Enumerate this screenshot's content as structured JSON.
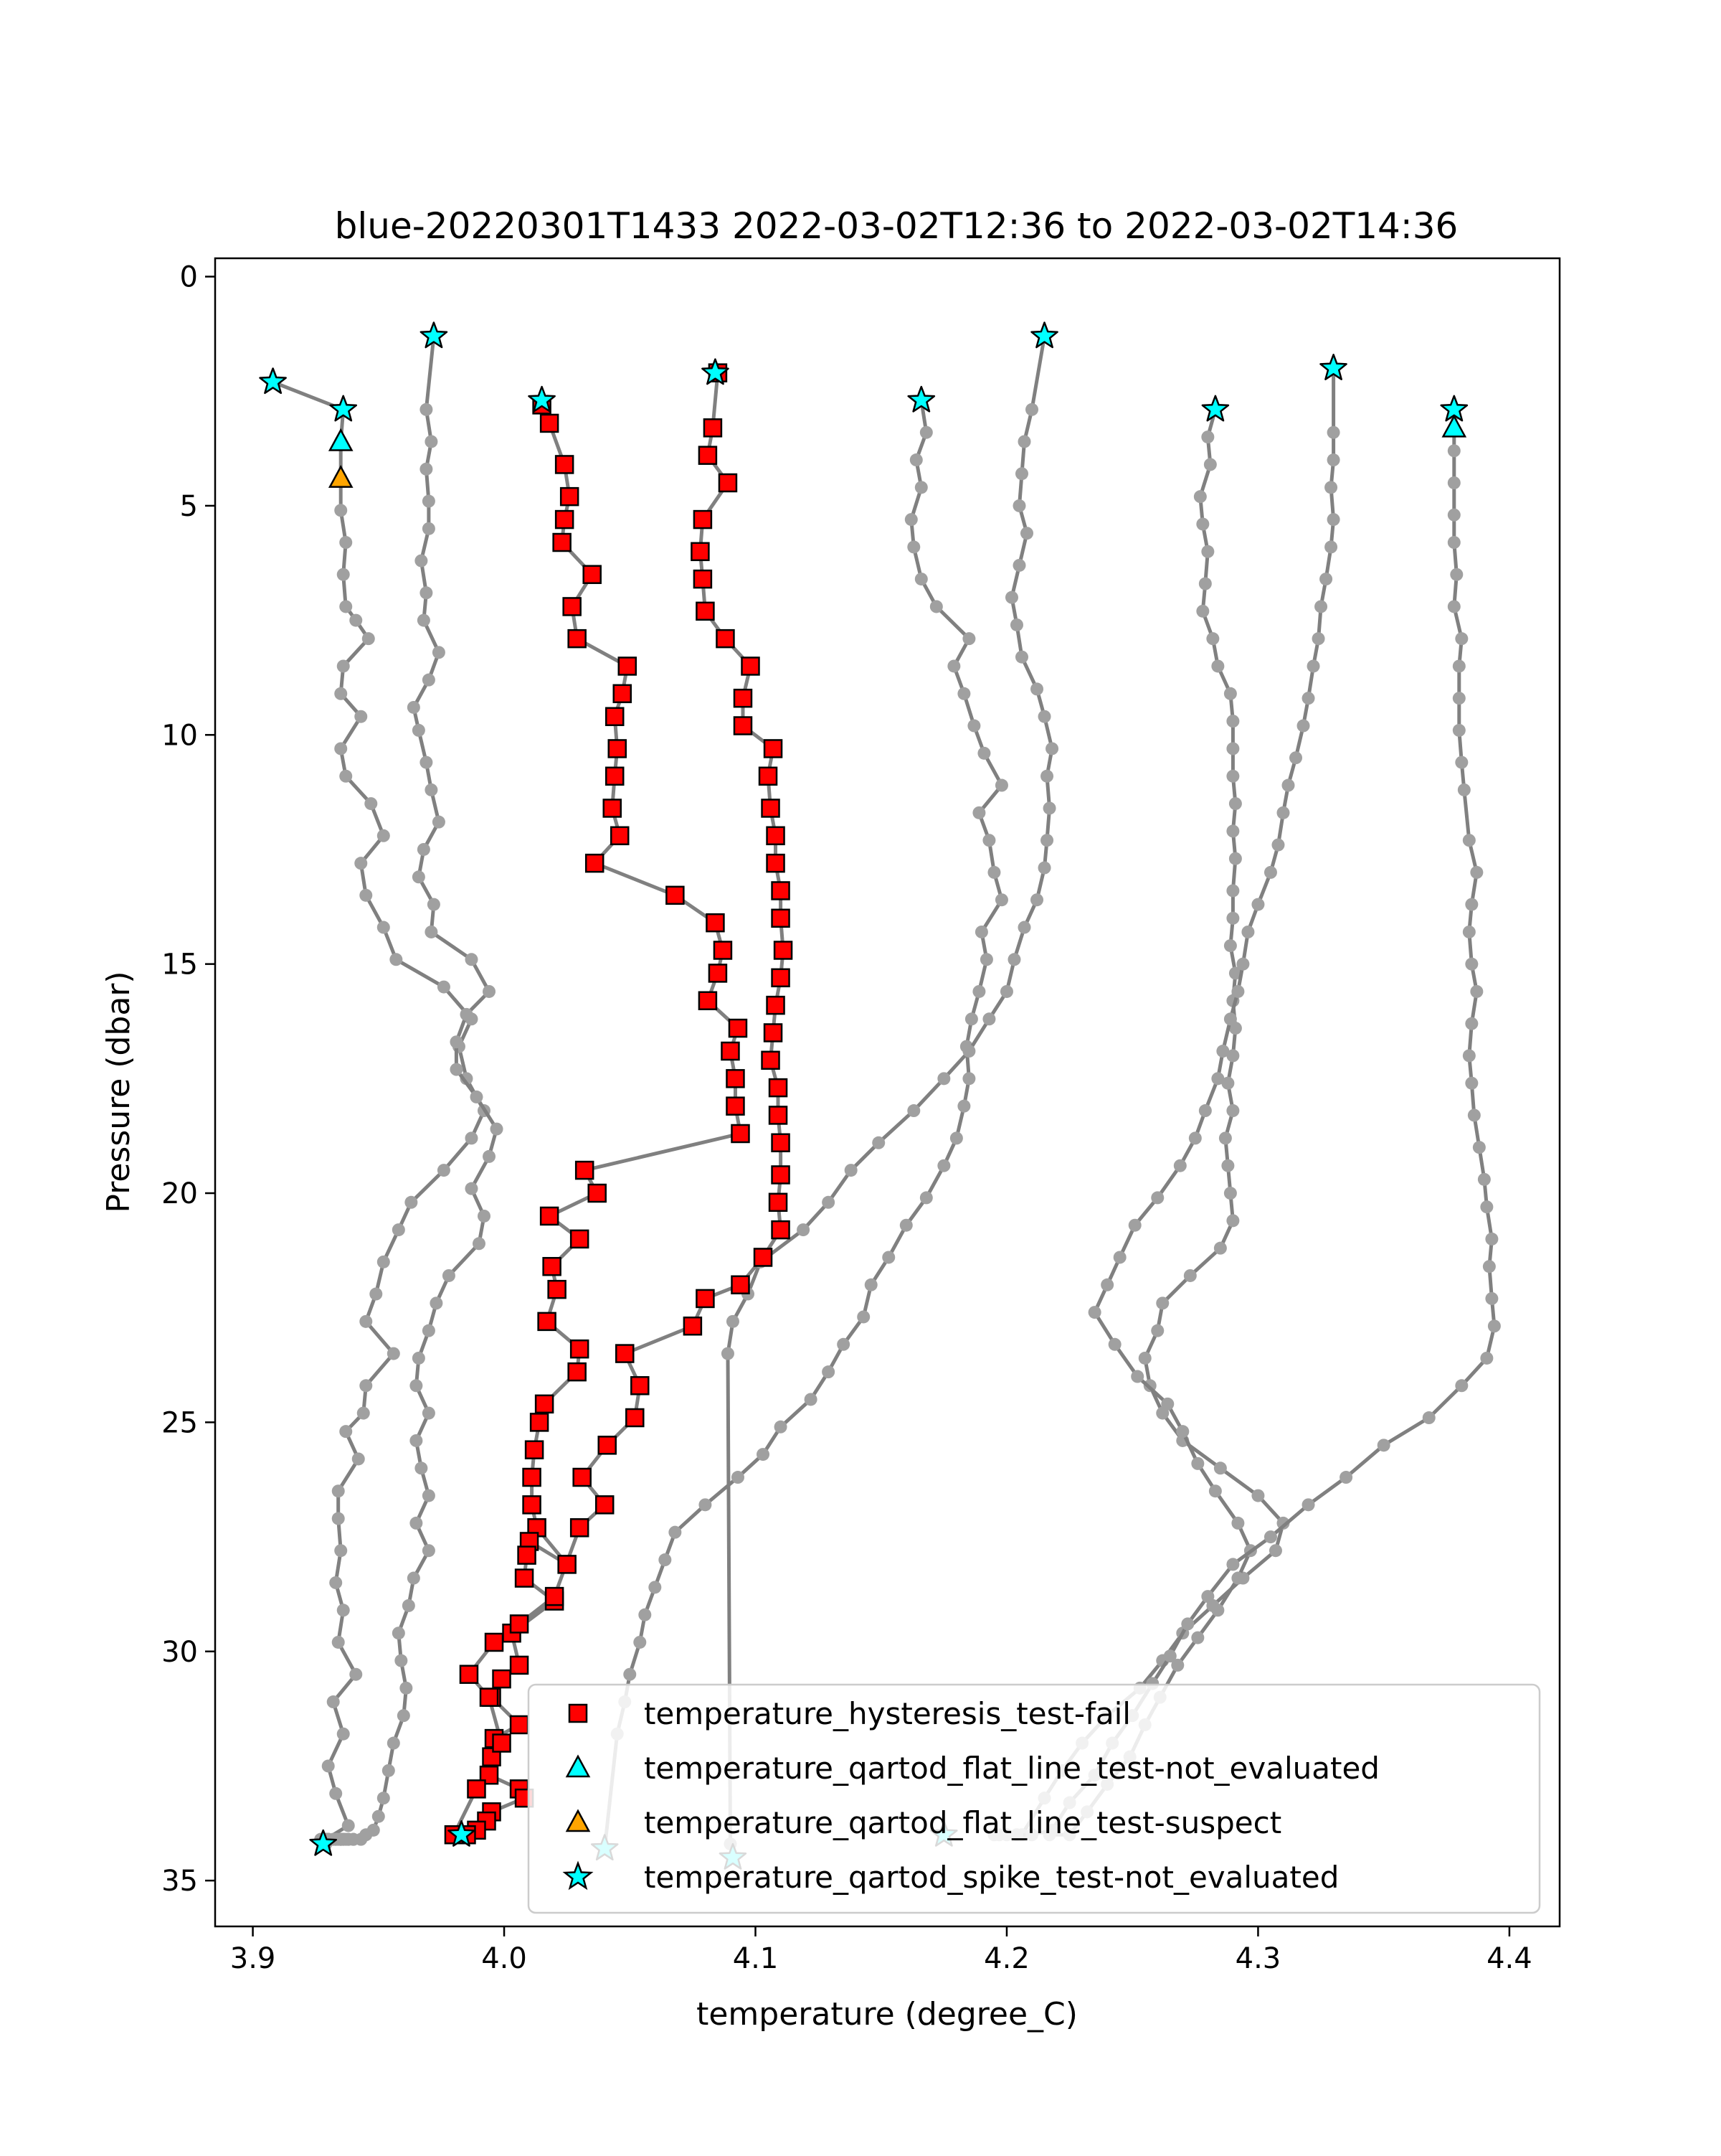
{
  "chart_data": {
    "type": "scatter",
    "title": "blue-20220301T1433 2022-03-02T12:36 to 2022-03-02T14:36",
    "xlabel": "temperature (degree_C)",
    "ylabel": "Pressure (dbar)",
    "xlim": [
      3.885,
      4.42
    ],
    "ylim": [
      36.0,
      -0.4
    ],
    "y_inverted": true,
    "xticks": [
      "3.9",
      "4.0",
      "4.1",
      "4.2",
      "4.3",
      "4.4"
    ],
    "xtick_values": [
      3.9,
      4.0,
      4.1,
      4.2,
      4.3,
      4.4
    ],
    "yticks": [
      "0",
      "5",
      "10",
      "15",
      "20",
      "25",
      "30",
      "35"
    ],
    "ytick_values": [
      0,
      5,
      10,
      15,
      20,
      25,
      30,
      35
    ],
    "grid": false,
    "legend_position": "lower-right",
    "colors": {
      "profile_line": "#808080",
      "profile_marker": "#a0a0a0",
      "hysteresis_fail": "#ff0000",
      "not_evaluated": "#00ffff",
      "suspect": "#ffa500",
      "edge": "#000000"
    },
    "profiles": [
      {
        "x": [
          3.908,
          3.936,
          3.935,
          3.935,
          3.935,
          3.937,
          3.936,
          3.937,
          3.941,
          3.946,
          3.936,
          3.935,
          3.943,
          3.935,
          3.937,
          3.947,
          3.952,
          3.943,
          3.945,
          3.952,
          3.957,
          3.976,
          3.987,
          3.982,
          3.985,
          3.992,
          3.987,
          3.976,
          3.963,
          3.958,
          3.952,
          3.949,
          3.945,
          3.956,
          3.945,
          3.944,
          3.937,
          3.942,
          3.934,
          3.934,
          3.935,
          3.933,
          3.936,
          3.934,
          3.941,
          3.932,
          3.936,
          3.93,
          3.933,
          3.938,
          3.929,
          3.928,
          3.929,
          3.929,
          3.927,
          3.928
        ],
        "y": [
          2.3,
          2.9,
          3.6,
          4.4,
          5.1,
          5.8,
          6.5,
          7.2,
          7.5,
          7.9,
          8.5,
          9.1,
          9.6,
          10.3,
          10.9,
          11.5,
          12.2,
          12.8,
          13.5,
          14.2,
          14.9,
          15.5,
          16.2,
          16.8,
          17.5,
          18.2,
          18.8,
          19.5,
          20.2,
          20.8,
          21.5,
          22.2,
          22.8,
          23.5,
          24.2,
          24.8,
          25.2,
          25.8,
          26.5,
          27.1,
          27.8,
          28.5,
          29.1,
          29.8,
          30.5,
          31.1,
          31.8,
          32.5,
          33.1,
          33.8,
          34.1,
          34.2,
          34.2,
          34.2,
          34.1,
          34.2
        ]
      },
      {
        "x": [
          3.972,
          3.969,
          3.971,
          3.969,
          3.97,
          3.97,
          3.967,
          3.969,
          3.968,
          3.974,
          3.97,
          3.964,
          3.966,
          3.969,
          3.971,
          3.974,
          3.968,
          3.966,
          3.972,
          3.971,
          3.987,
          3.994,
          3.985,
          3.981,
          3.981,
          3.989,
          3.997,
          3.994,
          3.987,
          3.992,
          3.99,
          3.978,
          3.973,
          3.97,
          3.966,
          3.965,
          3.97,
          3.965,
          3.967,
          3.97,
          3.965,
          3.97,
          3.964,
          3.962,
          3.958,
          3.959,
          3.961,
          3.96,
          3.956,
          3.954,
          3.952,
          3.95,
          3.948,
          3.945,
          3.943,
          3.94,
          3.938,
          3.94,
          3.936,
          3.937,
          3.935,
          3.932,
          3.935,
          3.938,
          3.936,
          3.933,
          3.935,
          3.934,
          3.93,
          3.93,
          3.93,
          3.935,
          3.933,
          3.93,
          3.929,
          3.928
        ],
        "y": [
          1.3,
          2.9,
          3.6,
          4.2,
          4.9,
          5.5,
          6.2,
          6.9,
          7.5,
          8.2,
          8.8,
          9.4,
          9.9,
          10.6,
          11.2,
          11.9,
          12.5,
          13.1,
          13.7,
          14.3,
          14.9,
          15.6,
          16.1,
          16.7,
          17.3,
          17.9,
          18.6,
          19.2,
          19.9,
          20.5,
          21.1,
          21.8,
          22.4,
          23.0,
          23.6,
          24.2,
          24.8,
          25.4,
          26.0,
          26.6,
          27.2,
          27.8,
          28.4,
          29.0,
          29.6,
          30.2,
          30.8,
          31.4,
          32.0,
          32.6,
          33.2,
          33.6,
          33.9,
          34.0,
          34.1,
          34.1,
          34.1,
          34.1,
          34.1,
          34.1,
          34.1,
          34.1,
          34.1,
          34.1,
          34.1,
          34.1,
          34.1,
          34.1,
          34.1,
          34.1,
          34.1,
          34.1,
          34.1,
          34.1,
          34.1,
          34.2
        ]
      },
      {
        "x": [
          4.166,
          4.168,
          4.164,
          4.166,
          4.162,
          4.163,
          4.166,
          4.172,
          4.185,
          4.179,
          4.183,
          4.187,
          4.191,
          4.198,
          4.189,
          4.193,
          4.195,
          4.198,
          4.19,
          4.192,
          4.189,
          4.186,
          4.184,
          4.185,
          4.183,
          4.18,
          4.175,
          4.168,
          4.16,
          4.153,
          4.146,
          4.143,
          4.135,
          4.129,
          4.122,
          4.11,
          4.103,
          4.093,
          4.08,
          4.068,
          4.064,
          4.06,
          4.056,
          4.054,
          4.05,
          4.048,
          4.045,
          4.04
        ],
        "y": [
          2.7,
          3.4,
          4.0,
          4.6,
          5.3,
          5.9,
          6.6,
          7.2,
          7.9,
          8.5,
          9.1,
          9.8,
          10.4,
          11.1,
          11.7,
          12.3,
          13.0,
          13.6,
          14.3,
          14.9,
          15.6,
          16.2,
          16.8,
          17.5,
          18.1,
          18.8,
          19.4,
          20.1,
          20.7,
          21.4,
          22.0,
          22.7,
          23.3,
          23.9,
          24.5,
          25.1,
          25.7,
          26.2,
          26.8,
          27.4,
          28.0,
          28.6,
          29.2,
          29.8,
          30.5,
          31.1,
          31.8,
          34.3
        ]
      },
      {
        "x": [
          4.215,
          4.21,
          4.207,
          4.206,
          4.205,
          4.208,
          4.205,
          4.202,
          4.204,
          4.206,
          4.212,
          4.215,
          4.218,
          4.216,
          4.217,
          4.216,
          4.215,
          4.212,
          4.207,
          4.203,
          4.2,
          4.193,
          4.185,
          4.175,
          4.163,
          4.149,
          4.138,
          4.129,
          4.119,
          4.102,
          4.097,
          4.091,
          4.089,
          4.09,
          4.091
        ],
        "y": [
          1.3,
          2.9,
          3.6,
          4.3,
          5.0,
          5.6,
          6.3,
          7.0,
          7.6,
          8.3,
          9.0,
          9.6,
          10.3,
          10.9,
          11.6,
          12.3,
          12.9,
          13.6,
          14.2,
          14.9,
          15.6,
          16.2,
          16.9,
          17.5,
          18.2,
          18.9,
          19.5,
          20.2,
          20.8,
          21.5,
          22.2,
          22.8,
          23.5,
          34.2,
          34.5
        ]
      },
      {
        "x": [
          4.283,
          4.28,
          4.281,
          4.277,
          4.278,
          4.28,
          4.279,
          4.278,
          4.282,
          4.284,
          4.289,
          4.29,
          4.29,
          4.29,
          4.291,
          4.29,
          4.291,
          4.29,
          4.29,
          4.289,
          4.291,
          4.29,
          4.291,
          4.29,
          4.288,
          4.29,
          4.287,
          4.288,
          4.289,
          4.29,
          4.285,
          4.273,
          4.262,
          4.26,
          4.255,
          4.257,
          4.262,
          4.27,
          4.285,
          4.3,
          4.31,
          4.307,
          4.294,
          4.282,
          4.27,
          4.262,
          4.253,
          4.24,
          4.23,
          4.222,
          4.215,
          4.206
        ],
        "y": [
          2.9,
          3.5,
          4.1,
          4.8,
          5.4,
          6.0,
          6.7,
          7.3,
          7.9,
          8.5,
          9.1,
          9.7,
          10.3,
          10.9,
          11.5,
          12.1,
          12.7,
          13.4,
          14.0,
          14.6,
          15.2,
          15.8,
          16.4,
          17.0,
          17.6,
          18.2,
          18.8,
          19.4,
          20.0,
          20.6,
          21.2,
          21.8,
          22.4,
          23.0,
          23.6,
          24.2,
          24.8,
          25.4,
          26.0,
          26.6,
          27.2,
          27.8,
          28.4,
          29.0,
          29.6,
          30.2,
          30.8,
          31.4,
          32.0,
          32.6,
          33.2,
          34.0
        ]
      },
      {
        "x": [
          4.33,
          4.33,
          4.33,
          4.329,
          4.33,
          4.329,
          4.327,
          4.325,
          4.324,
          4.322,
          4.32,
          4.318,
          4.315,
          4.312,
          4.31,
          4.308,
          4.305,
          4.3,
          4.296,
          4.294,
          4.292,
          4.289,
          4.286,
          4.284,
          4.279,
          4.275,
          4.269,
          4.26,
          4.251,
          4.245,
          4.24,
          4.235,
          4.243,
          4.252,
          4.264,
          4.27,
          4.276,
          4.283,
          4.292,
          4.297,
          4.292,
          4.284,
          4.276,
          4.268,
          4.261,
          4.255,
          4.249,
          4.24,
          4.232,
          4.225,
          4.217
        ],
        "y": [
          2.0,
          3.4,
          4.0,
          4.6,
          5.3,
          5.9,
          6.6,
          7.2,
          7.9,
          8.5,
          9.2,
          9.8,
          10.5,
          11.1,
          11.7,
          12.4,
          13.0,
          13.7,
          14.3,
          15.0,
          15.6,
          16.2,
          16.9,
          17.5,
          18.2,
          18.8,
          19.4,
          20.1,
          20.7,
          21.4,
          22.0,
          22.6,
          23.3,
          24.0,
          24.6,
          25.2,
          25.9,
          26.5,
          27.2,
          27.8,
          28.4,
          29.1,
          29.7,
          30.3,
          31.0,
          31.6,
          32.3,
          32.9,
          33.5,
          34.0,
          34.0
        ]
      },
      {
        "x": [
          4.378,
          4.378,
          4.378,
          4.378,
          4.378,
          4.379,
          4.378,
          4.381,
          4.38,
          4.38,
          4.38,
          4.381,
          4.382,
          4.384,
          4.387,
          4.385,
          4.384,
          4.385,
          4.387,
          4.385,
          4.384,
          4.385,
          4.386,
          4.388,
          4.39,
          4.391,
          4.393,
          4.392,
          4.393,
          4.394,
          4.391,
          4.381,
          4.368,
          4.35,
          4.335,
          4.32,
          4.305,
          4.29,
          4.28,
          4.272,
          4.265,
          4.258,
          4.25,
          4.242,
          4.235,
          4.225,
          4.218,
          4.21,
          4.204,
          4.2,
          4.197,
          4.195
        ],
        "y": [
          3.0,
          3.8,
          4.5,
          5.2,
          5.8,
          6.5,
          7.2,
          7.9,
          8.5,
          9.2,
          9.9,
          10.6,
          11.2,
          12.3,
          13.0,
          13.7,
          14.3,
          15.0,
          15.6,
          16.3,
          17.0,
          17.6,
          18.3,
          19.0,
          19.7,
          20.3,
          21.0,
          21.6,
          22.3,
          22.9,
          23.6,
          24.2,
          24.9,
          25.5,
          26.2,
          26.8,
          27.5,
          28.1,
          28.8,
          29.4,
          30.1,
          30.7,
          31.4,
          32.0,
          32.7,
          33.3,
          33.9,
          34.0,
          34.0,
          34.0,
          34.0,
          34.0
        ]
      }
    ],
    "hysteresis_profiles": [
      {
        "x": [
          4.015,
          4.018,
          4.024,
          4.026,
          4.024,
          4.023,
          4.035,
          4.027,
          4.029,
          4.049,
          4.047,
          4.044,
          4.045,
          4.044,
          4.043,
          4.046,
          4.036,
          4.068,
          4.084,
          4.087,
          4.085,
          4.081,
          4.093,
          4.09,
          4.092,
          4.092,
          4.094,
          4.032,
          4.037,
          4.018,
          4.03,
          4.019,
          4.021,
          4.017,
          4.03,
          4.029,
          4.016,
          4.014,
          4.012,
          4.011,
          4.011,
          4.013,
          4.025,
          4.01,
          4.009,
          4.008,
          4.02,
          4.003,
          4.006,
          3.999,
          3.995,
          4.006,
          3.996,
          3.995,
          3.994,
          4.006,
          4.008,
          3.995,
          3.993,
          3.989,
          3.985
        ],
        "y": [
          2.8,
          3.2,
          4.1,
          4.8,
          5.3,
          5.8,
          6.5,
          7.2,
          7.9,
          8.5,
          9.1,
          9.6,
          10.3,
          10.9,
          11.6,
          12.2,
          12.8,
          13.5,
          14.1,
          14.7,
          15.2,
          15.8,
          16.4,
          16.9,
          17.5,
          18.1,
          18.7,
          19.5,
          20.0,
          20.5,
          21.0,
          21.6,
          22.1,
          22.8,
          23.4,
          23.9,
          24.6,
          25.0,
          25.6,
          26.2,
          26.8,
          27.3,
          28.1,
          27.6,
          27.9,
          28.4,
          28.9,
          29.6,
          30.3,
          30.6,
          31.0,
          31.6,
          31.9,
          32.3,
          32.7,
          33.0,
          33.2,
          33.5,
          33.7,
          33.9,
          34.0
        ]
      },
      {
        "x": [
          4.085,
          4.083,
          4.081,
          4.089,
          4.079,
          4.078,
          4.079,
          4.08,
          4.088,
          4.098,
          4.095,
          4.095,
          4.107,
          4.105,
          4.106,
          4.108,
          4.108,
          4.11,
          4.11,
          4.111,
          4.11,
          4.108,
          4.107,
          4.106,
          4.109,
          4.109,
          4.11,
          4.11,
          4.109,
          4.11,
          4.103,
          4.094,
          4.08,
          4.075,
          4.048,
          4.054,
          4.052,
          4.041,
          4.031,
          4.04,
          4.03,
          4.02,
          4.006,
          3.996,
          3.986,
          3.994,
          3.999,
          3.989,
          3.98
        ],
        "y": [
          2.1,
          3.3,
          3.9,
          4.5,
          5.3,
          6.0,
          6.6,
          7.3,
          7.9,
          8.5,
          9.2,
          9.8,
          10.3,
          10.9,
          11.6,
          12.2,
          12.8,
          13.4,
          14.0,
          14.7,
          15.3,
          15.9,
          16.5,
          17.1,
          17.7,
          18.3,
          18.9,
          19.6,
          20.2,
          20.8,
          21.4,
          22.0,
          22.3,
          22.9,
          23.5,
          24.2,
          24.9,
          25.5,
          26.2,
          26.8,
          27.3,
          28.8,
          29.4,
          29.8,
          30.5,
          31.0,
          32.0,
          33.0,
          34.0
        ]
      }
    ],
    "markers": {
      "spike_not_evaluated": {
        "x": [
          3.908,
          3.936,
          3.972,
          4.015,
          4.084,
          4.166,
          4.215,
          4.283,
          4.33,
          4.378,
          3.928,
          3.983,
          4.04,
          4.091,
          4.175
        ],
        "y": [
          2.3,
          2.9,
          1.3,
          2.7,
          2.1,
          2.7,
          1.3,
          2.9,
          2.0,
          2.9,
          34.2,
          34.0,
          34.3,
          34.5,
          34.0
        ]
      },
      "flat_line_not_evaluated": {
        "x": [
          3.935,
          4.378
        ],
        "y": [
          3.6,
          3.3
        ]
      },
      "flat_line_suspect": {
        "x": [
          3.935
        ],
        "y": [
          4.4
        ]
      }
    },
    "legend": [
      {
        "label": "temperature_hysteresis_test-fail",
        "marker": "square",
        "color": "#ff0000"
      },
      {
        "label": "temperature_qartod_flat_line_test-not_evaluated",
        "marker": "triangle",
        "color": "#00ffff"
      },
      {
        "label": "temperature_qartod_flat_line_test-suspect",
        "marker": "triangle",
        "color": "#ffa500"
      },
      {
        "label": "temperature_qartod_spike_test-not_evaluated",
        "marker": "star",
        "color": "#00ffff"
      }
    ]
  }
}
